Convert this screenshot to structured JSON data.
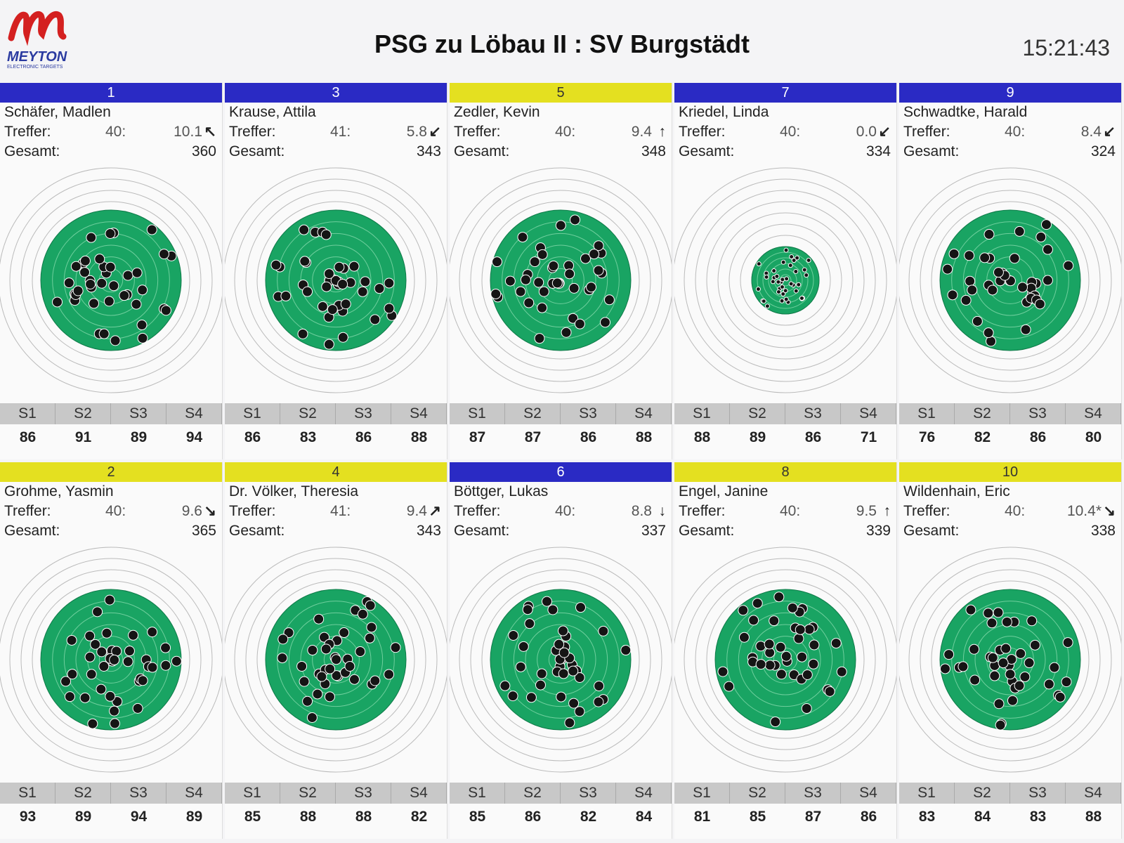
{
  "header": {
    "logo": "MEYTON",
    "logo_sub": "ELECTRONIC TARGETS",
    "title": "PSG zu Löbau II : SV Burgstädt",
    "time": "15:21:43"
  },
  "labels": {
    "treffer": "Treffer:",
    "gesamt": "Gesamt:",
    "series": [
      "S1",
      "S2",
      "S3",
      "S4"
    ]
  },
  "panels": [
    {
      "lane": "1",
      "band_color": "#2a2ac4",
      "name": "Schäfer, Madlen",
      "shots": "40:",
      "last_shot": "10.1",
      "direction": "↖",
      "total": "360",
      "series": [
        "86",
        "91",
        "89",
        "94"
      ]
    },
    {
      "lane": "3",
      "band_color": "#2a2ac4",
      "name": "Krause, Attila",
      "shots": "41:",
      "last_shot": "5.8",
      "direction": "↙",
      "total": "343",
      "series": [
        "86",
        "83",
        "86",
        "88"
      ]
    },
    {
      "lane": "5",
      "band_color": "#e4e020",
      "name": "Zedler, Kevin",
      "shots": "40:",
      "last_shot": "9.4",
      "direction": "↑",
      "total": "348",
      "series": [
        "87",
        "87",
        "86",
        "88"
      ]
    },
    {
      "lane": "7",
      "band_color": "#2a2ac4",
      "name": "Kriedel, Linda",
      "shots": "40:",
      "last_shot": "0.0",
      "direction": "↙",
      "total": "334",
      "series": [
        "88",
        "89",
        "86",
        "71"
      ]
    },
    {
      "lane": "9",
      "band_color": "#2a2ac4",
      "name": "Schwadtke, Harald",
      "shots": "40:",
      "last_shot": "8.4",
      "direction": "↙",
      "total": "324",
      "series": [
        "76",
        "82",
        "86",
        "80"
      ]
    },
    {
      "lane": "2",
      "band_color": "#e4e020",
      "name": "Grohme, Yasmin",
      "shots": "40:",
      "last_shot": "9.6",
      "direction": "↘",
      "total": "365",
      "series": [
        "93",
        "89",
        "94",
        "89"
      ]
    },
    {
      "lane": "4",
      "band_color": "#e4e020",
      "name": "Dr. Völker, Theresia",
      "shots": "41:",
      "last_shot": "9.4",
      "direction": "↗",
      "total": "343",
      "series": [
        "85",
        "88",
        "88",
        "82"
      ]
    },
    {
      "lane": "6",
      "band_color": "#2a2ac4",
      "name": "Böttger, Lukas",
      "shots": "40:",
      "last_shot": "8.8",
      "direction": "↓",
      "total": "337",
      "series": [
        "85",
        "86",
        "82",
        "84"
      ]
    },
    {
      "lane": "8",
      "band_color": "#e4e020",
      "name": "Engel, Janine",
      "shots": "40:",
      "last_shot": "9.5",
      "direction": "↑",
      "total": "339",
      "series": [
        "81",
        "85",
        "87",
        "86"
      ]
    },
    {
      "lane": "10",
      "band_color": "#e4e020",
      "name": "Wildenhain, Eric",
      "shots": "40:",
      "last_shot": "10.4*",
      "direction": "↘",
      "total": "338",
      "series": [
        "83",
        "84",
        "83",
        "88"
      ]
    }
  ]
}
